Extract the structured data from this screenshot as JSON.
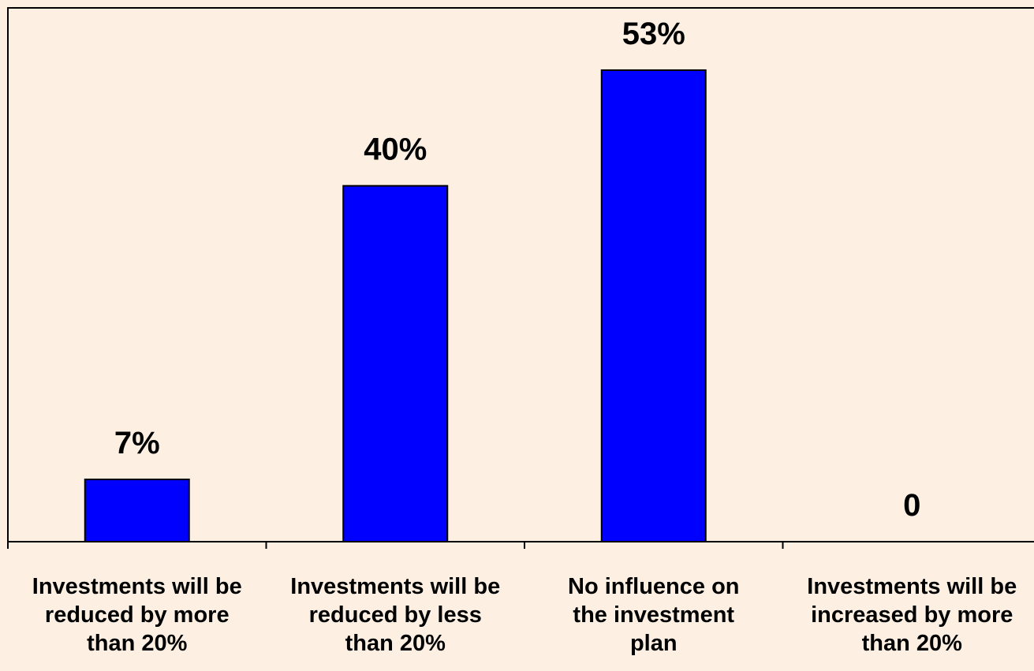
{
  "chart_data": {
    "type": "bar",
    "categories": [
      [
        "Investments will be",
        "reduced by more",
        "than 20%"
      ],
      [
        "Investments will be",
        "reduced by less",
        "than 20%"
      ],
      [
        "No influence on",
        "the investment",
        "plan"
      ],
      [
        "Investments will be",
        "increased by more",
        "than 20%"
      ]
    ],
    "values": [
      7,
      40,
      53,
      0
    ],
    "data_labels": [
      "7%",
      "40%",
      "53%",
      "0"
    ],
    "ylim": [
      0,
      60
    ],
    "grid": false,
    "legend": "none",
    "colors": {
      "bar": "#0000ff",
      "background": "#fdf0e3",
      "axis": "#000000"
    }
  }
}
